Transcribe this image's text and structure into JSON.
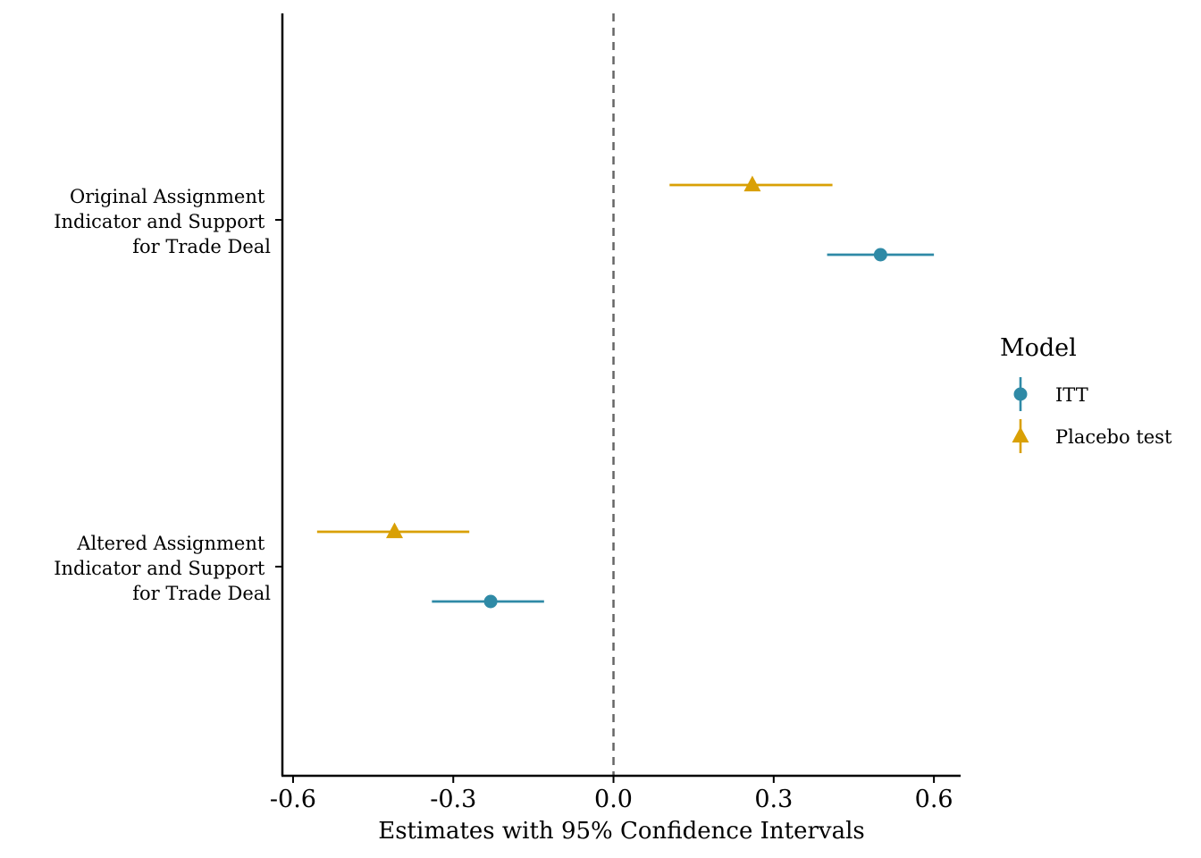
{
  "chart_data": {
    "type": "scatter",
    "subtype": "coefficient-plot",
    "xlabel": "Estimates with 95% Confidence Intervals",
    "ylabel": "",
    "xlim": [
      -0.62,
      0.65
    ],
    "xticks": [
      -0.6,
      -0.3,
      0.0,
      0.3,
      0.6
    ],
    "xtick_labels": [
      "-0.6",
      "-0.3",
      "0.0",
      "0.3",
      "0.6"
    ],
    "reference_line": {
      "x": 0.0,
      "style": "dashed",
      "color": "#666666"
    },
    "categories": [
      [
        "Original Assignment",
        "Indicator and Support",
        "for Trade Deal"
      ],
      [
        "Altered Assignment",
        "Indicator and Support",
        "for Trade Deal"
      ]
    ],
    "legend": {
      "title": "Model",
      "position": "right"
    },
    "grid": false,
    "series": [
      {
        "name": "ITT",
        "color": "#2f8aa6",
        "marker": "circle",
        "points": [
          {
            "category": 0,
            "estimate": 0.5,
            "lower": 0.4,
            "upper": 0.6
          },
          {
            "category": 1,
            "estimate": -0.23,
            "lower": -0.34,
            "upper": -0.13
          }
        ]
      },
      {
        "name": "Placebo test",
        "color": "#d9a005",
        "marker": "triangle",
        "points": [
          {
            "category": 0,
            "estimate": 0.26,
            "lower": 0.105,
            "upper": 0.41
          },
          {
            "category": 1,
            "estimate": -0.41,
            "lower": -0.555,
            "upper": -0.27
          }
        ]
      }
    ]
  }
}
